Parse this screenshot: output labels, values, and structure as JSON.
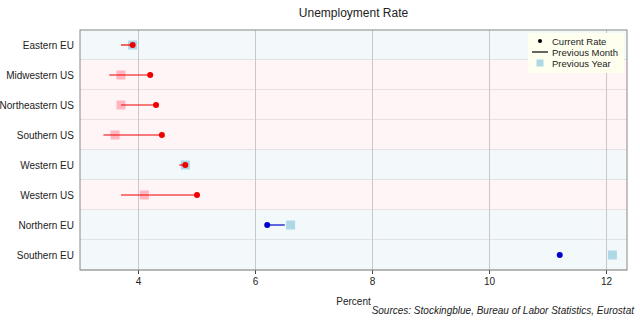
{
  "chart_data": {
    "type": "dumbbell",
    "title": "Unemployment Rate",
    "x_label": "Percent",
    "annotation": "Sources: Stockingblue, Bureau of Labor Statistics, Eurostat",
    "orientation": "horizontal",
    "categories": [
      "Eastern EU",
      "Midwestern US",
      "Northeastern US",
      "Southern US",
      "Western EU",
      "Western US",
      "Northern EU",
      "Southern EU"
    ],
    "series": [
      {
        "name": "Current Rate",
        "marker": "circle",
        "values": [
          3.9,
          4.2,
          4.3,
          4.4,
          4.8,
          5.0,
          6.2,
          11.2
        ],
        "colors": [
          "#ee0000",
          "#ee0000",
          "#ee0000",
          "#ee0000",
          "#ee0000",
          "#ee0000",
          "#0000cc",
          "#0000cc"
        ]
      },
      {
        "name": "Previous Month",
        "marker": "line",
        "values": [
          3.7,
          3.5,
          3.7,
          3.4,
          4.7,
          3.7,
          6.5,
          11.2
        ],
        "colors": [
          "#ee0000",
          "#ee0000",
          "#ee0000",
          "#ee0000",
          "#ee0000",
          "#ee0000",
          "#0000cc",
          "#0000cc"
        ]
      },
      {
        "name": "Previous Year",
        "marker": "square",
        "values": [
          3.9,
          3.7,
          3.7,
          3.6,
          4.8,
          4.1,
          6.6,
          12.1
        ],
        "colors": [
          "#add8e6",
          "#ffb6c1",
          "#ffb6c1",
          "#ffb6c1",
          "#add8e6",
          "#ffb6c1",
          "#add8e6",
          "#add8e6"
        ]
      }
    ],
    "xlim": [
      3,
      12.35
    ],
    "xticks": [
      4,
      6,
      8,
      10,
      12
    ],
    "grid": true,
    "legend": "top-right"
  }
}
